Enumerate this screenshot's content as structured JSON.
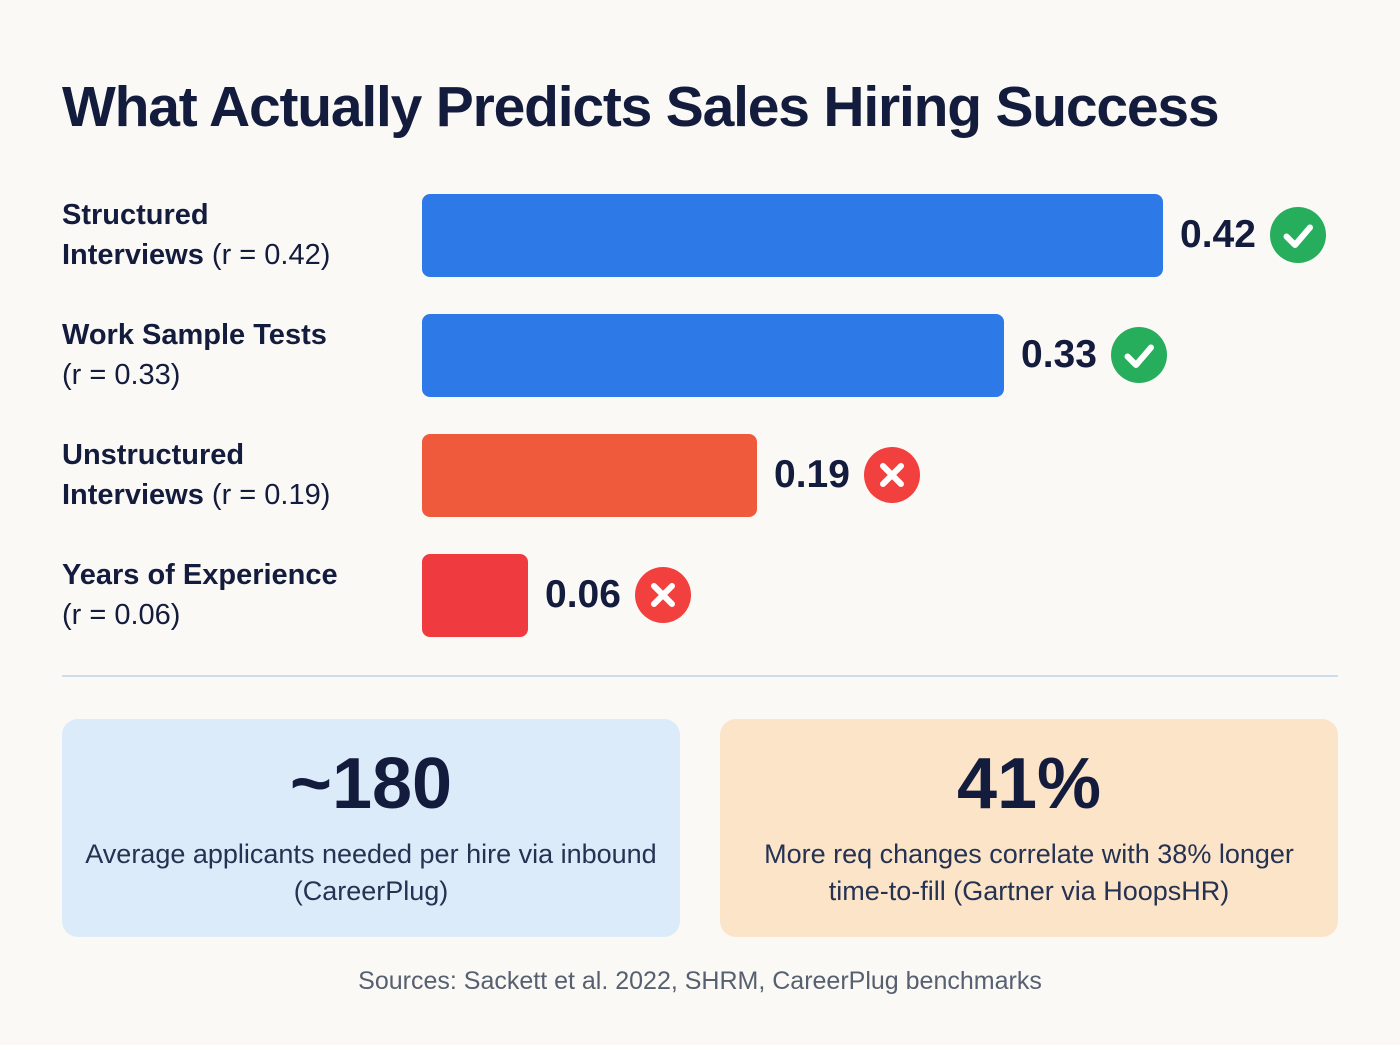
{
  "title": "What Actually Predicts Sales Hiring Success",
  "colors": {
    "background": "#fbf9f5",
    "ink": "#141c3d",
    "bar_blue": "#2e79e8",
    "bar_orange": "#f05a3c",
    "bar_red": "#ef3b40",
    "good": "#27ae5c",
    "bad": "#f2403e",
    "divider": "#cddcec",
    "card_blue_bg": "#dcebfa",
    "card_peach_bg": "#fce4c9",
    "footer_text": "#566070"
  },
  "chart_data": {
    "type": "bar",
    "orientation": "horizontal",
    "title": "What Actually Predicts Sales Hiring Success",
    "xlabel": "",
    "ylabel": "",
    "xlim": [
      0,
      0.42
    ],
    "grid": false,
    "legend": false,
    "categories": [
      "Structured Interviews",
      "Work Sample Tests",
      "Unstructured Interviews",
      "Years of Experience"
    ],
    "values": [
      0.42,
      0.33,
      0.19,
      0.06
    ],
    "rows": [
      {
        "category": "Structured Interviews",
        "line1": "Structured",
        "line2_bold": "Interviews",
        "line2_note": "(r = 0.42)",
        "value": 0.42,
        "display": "0.42",
        "verdict": "good",
        "icon": "check-icon",
        "bar_color": "#2e79e8"
      },
      {
        "category": "Work Sample Tests",
        "line1": "Work Sample Tests",
        "line2_bold": "",
        "line2_note": "(r = 0.33)",
        "value": 0.33,
        "display": "0.33",
        "verdict": "good",
        "icon": "check-icon",
        "bar_color": "#2e79e8"
      },
      {
        "category": "Unstructured Interviews",
        "line1": "Unstructured",
        "line2_bold": "Interviews",
        "line2_note": "(r = 0.19)",
        "value": 0.19,
        "display": "0.19",
        "verdict": "bad",
        "icon": "x-icon",
        "bar_color": "#f05a3c"
      },
      {
        "category": "Years of Experience",
        "line1": "Years of Experience",
        "line2_bold": "",
        "line2_note": "(r = 0.06)",
        "value": 0.06,
        "display": "0.06",
        "verdict": "bad",
        "icon": "x-icon",
        "bar_color": "#ef3b40"
      }
    ]
  },
  "stat_cards": [
    {
      "value": "~180",
      "caption": "Average applicants needed per hire via inbound (CareerPlug)",
      "bg": "#dcebfa"
    },
    {
      "value": "41%",
      "caption": "More req changes correlate with 38% longer time-to-fill (Gartner via HoopsHR)",
      "bg": "#fce4c9"
    }
  ],
  "footer": "Sources: Sackett et al. 2022, SHRM, CareerPlug benchmarks"
}
